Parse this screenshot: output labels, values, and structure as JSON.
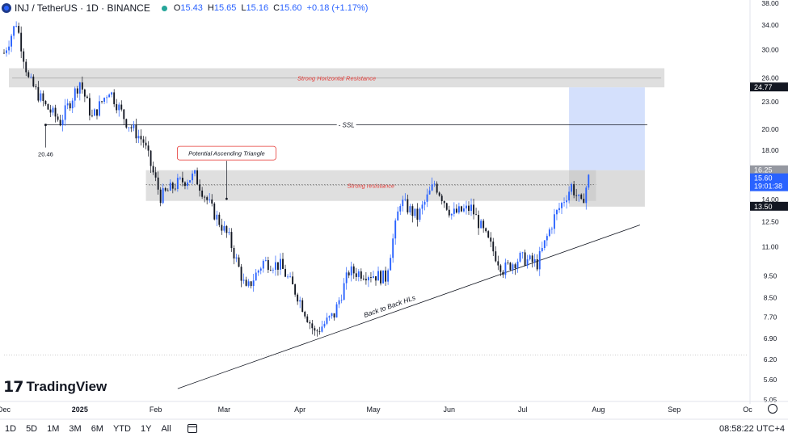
{
  "header": {
    "title": "INJ / TetherUS · 1D · BINANCE",
    "open_label": "O",
    "open": "15.43",
    "high_label": "H",
    "high": "15.65",
    "low_label": "L",
    "low": "15.16",
    "close_label": "C",
    "close": "15.60",
    "change": "+0.18 (+1.17%)"
  },
  "bottom_bar": {
    "timeframes": [
      "1D",
      "5D",
      "1M",
      "3M",
      "6M",
      "YTD",
      "1Y",
      "All"
    ],
    "clock": "08:58:22 UTC+4"
  },
  "branding": {
    "name": "TradingView"
  },
  "colors": {
    "up": "#2962ff",
    "down": "#131722",
    "zone": "#d9d9d9",
    "annotation_red": "#e53935",
    "target_box": "#c9d8fb",
    "price_tag": "#2962ff"
  },
  "chart_data": {
    "type": "candlestick",
    "y_scale": "log",
    "ylim": [
      5.2,
      38.0
    ],
    "x_range": [
      "2024-12-01",
      "2025-10-01"
    ],
    "x_ticks": [
      {
        "label": "Dec",
        "date": "2024-12-01"
      },
      {
        "label": "2025",
        "date": "2025-01-01"
      },
      {
        "label": "Feb",
        "date": "2025-02-01"
      },
      {
        "label": "Mar",
        "date": "2025-03-01"
      },
      {
        "label": "Apr",
        "date": "2025-04-01"
      },
      {
        "label": "May",
        "date": "2025-05-01"
      },
      {
        "label": "Jun",
        "date": "2025-06-01"
      },
      {
        "label": "Jul",
        "date": "2025-07-01"
      },
      {
        "label": "Aug",
        "date": "2025-08-01"
      },
      {
        "label": "Sep",
        "date": "2025-09-01"
      },
      {
        "label": "Oc",
        "date": "2025-10-01"
      }
    ],
    "y_ticks": [
      "38.00",
      "34.00",
      "30.00",
      "26.00",
      "23.00",
      "20.00",
      "18.00",
      "14.00",
      "12.50",
      "11.00",
      "9.50",
      "8.50",
      "7.70",
      "6.90",
      "6.20",
      "5.60",
      "5.05"
    ],
    "price_labels": [
      {
        "value": 24.77,
        "text": "24.77",
        "style": "dark"
      },
      {
        "value": 16.25,
        "text": "16.25",
        "style": "gray"
      },
      {
        "value": 15.6,
        "text": "15.60",
        "sub": "19:01:38",
        "style": "blue"
      },
      {
        "value": 13.5,
        "text": "13.50",
        "style": "dark"
      }
    ],
    "anchors": [
      {
        "date": "2024-12-01",
        "price": 29.5
      },
      {
        "date": "2024-12-06",
        "price": 34.5
      },
      {
        "date": "2024-12-11",
        "price": 25.8
      },
      {
        "date": "2024-12-18",
        "price": 22.5
      },
      {
        "date": "2024-12-24",
        "price": 20.8
      },
      {
        "date": "2025-01-01",
        "price": 25.5
      },
      {
        "date": "2025-01-06",
        "price": 21.2
      },
      {
        "date": "2025-01-13",
        "price": 24.5
      },
      {
        "date": "2025-01-20",
        "price": 20.8
      },
      {
        "date": "2025-01-27",
        "price": 18.8
      },
      {
        "date": "2025-02-03",
        "price": 14.2
      },
      {
        "date": "2025-02-10",
        "price": 15.2
      },
      {
        "date": "2025-02-17",
        "price": 15.8
      },
      {
        "date": "2025-02-24",
        "price": 13.3
      },
      {
        "date": "2025-03-03",
        "price": 11.5
      },
      {
        "date": "2025-03-10",
        "price": 8.8
      },
      {
        "date": "2025-03-17",
        "price": 10.2
      },
      {
        "date": "2025-03-24",
        "price": 10.0
      },
      {
        "date": "2025-03-31",
        "price": 8.6
      },
      {
        "date": "2025-04-07",
        "price": 7.1
      },
      {
        "date": "2025-04-15",
        "price": 7.8
      },
      {
        "date": "2025-04-21",
        "price": 9.7
      },
      {
        "date": "2025-04-29",
        "price": 9.6
      },
      {
        "date": "2025-05-06",
        "price": 9.4
      },
      {
        "date": "2025-05-12",
        "price": 13.9
      },
      {
        "date": "2025-05-19",
        "price": 12.8
      },
      {
        "date": "2025-05-26",
        "price": 15.2
      },
      {
        "date": "2025-06-02",
        "price": 13.0
      },
      {
        "date": "2025-06-10",
        "price": 13.4
      },
      {
        "date": "2025-06-17",
        "price": 11.3
      },
      {
        "date": "2025-06-23",
        "price": 9.8
      },
      {
        "date": "2025-06-30",
        "price": 10.4
      },
      {
        "date": "2025-07-07",
        "price": 10.1
      },
      {
        "date": "2025-07-14",
        "price": 12.8
      },
      {
        "date": "2025-07-21",
        "price": 15.0
      },
      {
        "date": "2025-07-25",
        "price": 13.6
      },
      {
        "date": "2025-07-28",
        "price": 15.6
      }
    ],
    "zones": [
      {
        "label": "Strong Horizontal Resistance",
        "from": "2024-12-03",
        "to": "2025-08-28",
        "low": 24.77,
        "high": 27.3
      },
      {
        "label": "Strong resistance",
        "from": "2025-01-28",
        "to": "2025-07-31",
        "low": 13.9,
        "high": 16.25
      }
    ],
    "ssl": {
      "label": "SSL",
      "price": 20.46,
      "from": "2024-12-18",
      "to": "2025-08-21",
      "low_label": "20.46"
    },
    "dotted_line": {
      "price": 15.1,
      "from": "2025-01-28",
      "to": "2025-07-31"
    },
    "trendline": {
      "label": "Back to Back HLs",
      "from": {
        "date": "2025-02-10",
        "price": 5.35
      },
      "to": {
        "date": "2025-08-18",
        "price": 12.3
      }
    },
    "triangle_callout": {
      "label": "Potential Ascending Triangle",
      "target": {
        "date": "2025-03-02",
        "price": 14.05
      }
    },
    "target_box": {
      "from": "2025-07-20",
      "to": "2025-08-20",
      "low": 16.25,
      "high": 24.77
    },
    "stop_box": {
      "from": "2025-07-20",
      "to": "2025-08-20",
      "low": 13.5,
      "high": 16.25
    },
    "horizontal_line": {
      "price": 6.35
    }
  }
}
